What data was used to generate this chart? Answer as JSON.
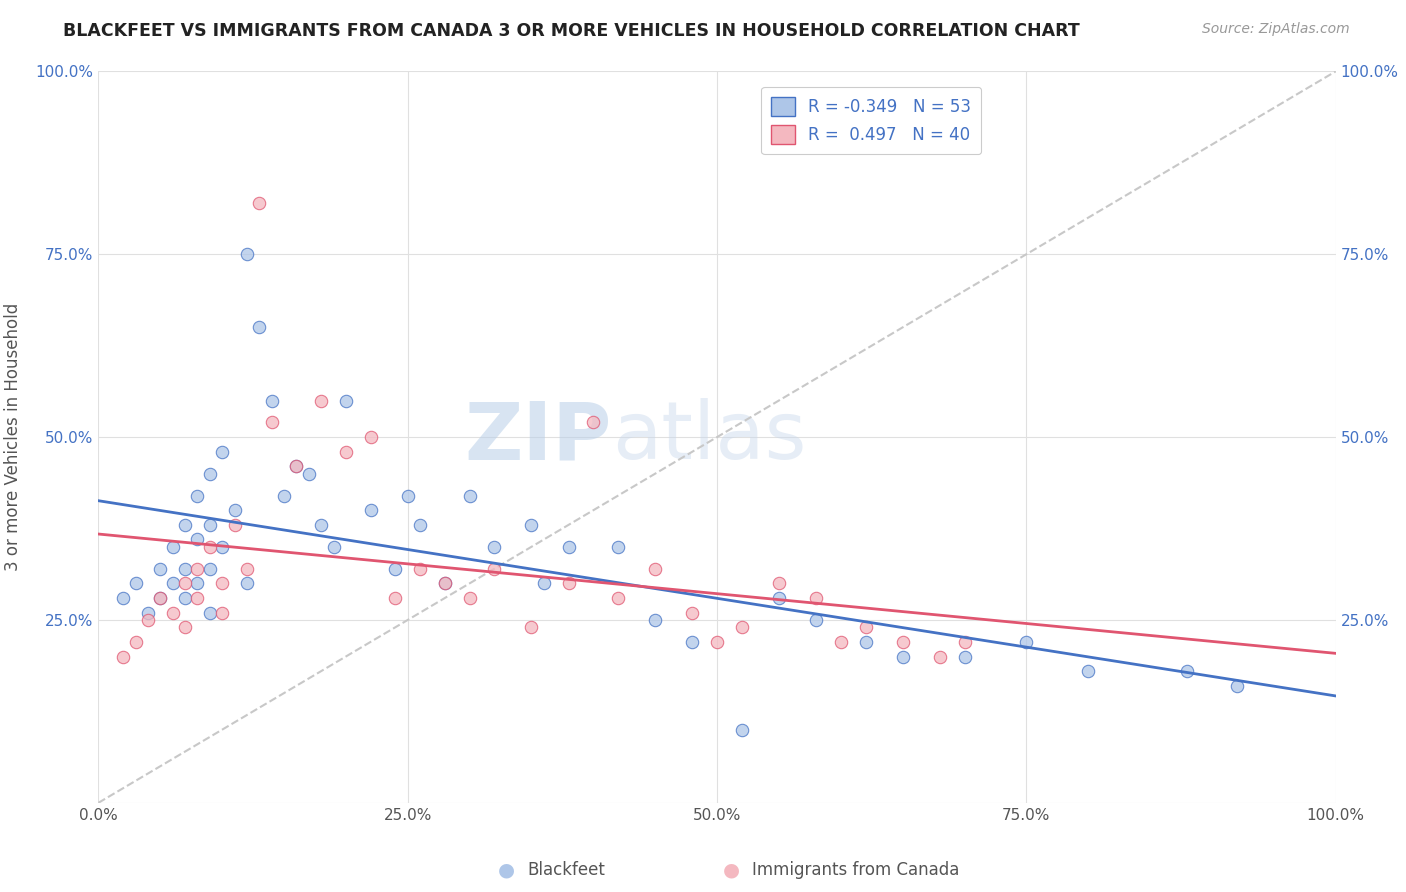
{
  "title": "BLACKFEET VS IMMIGRANTS FROM CANADA 3 OR MORE VEHICLES IN HOUSEHOLD CORRELATION CHART",
  "source_text": "Source: ZipAtlas.com",
  "ylabel": "3 or more Vehicles in Household",
  "watermark_zip": "ZIP",
  "watermark_atlas": "atlas",
  "legend_r1": "-0.349",
  "legend_n1": "53",
  "legend_r2": "0.497",
  "legend_n2": "40",
  "label1": "Blackfeet",
  "label2": "Immigrants from Canada",
  "color1": "#aec6e8",
  "color2": "#f4b8c0",
  "line_color1": "#4472c4",
  "line_color2": "#e05570",
  "diag_color": "#c8c8c8",
  "xlim": [
    0.0,
    1.0
  ],
  "ylim": [
    0.0,
    1.0
  ],
  "xticks": [
    0.0,
    0.25,
    0.5,
    0.75,
    1.0
  ],
  "yticks": [
    0.0,
    0.25,
    0.5,
    0.75,
    1.0
  ],
  "xticklabels": [
    "0.0%",
    "25.0%",
    "50.0%",
    "75.0%",
    "100.0%"
  ],
  "yticklabels": [
    "",
    "25.0%",
    "50.0%",
    "75.0%",
    "100.0%"
  ],
  "blackfeet_x": [
    0.02,
    0.03,
    0.04,
    0.05,
    0.05,
    0.06,
    0.06,
    0.07,
    0.07,
    0.07,
    0.08,
    0.08,
    0.08,
    0.09,
    0.09,
    0.09,
    0.09,
    0.1,
    0.1,
    0.11,
    0.12,
    0.12,
    0.13,
    0.14,
    0.15,
    0.16,
    0.17,
    0.18,
    0.19,
    0.2,
    0.22,
    0.24,
    0.25,
    0.26,
    0.28,
    0.3,
    0.32,
    0.35,
    0.36,
    0.38,
    0.42,
    0.45,
    0.48,
    0.52,
    0.55,
    0.58,
    0.62,
    0.65,
    0.7,
    0.75,
    0.8,
    0.88,
    0.92
  ],
  "blackfeet_y": [
    0.28,
    0.3,
    0.26,
    0.32,
    0.28,
    0.35,
    0.3,
    0.38,
    0.32,
    0.28,
    0.42,
    0.36,
    0.3,
    0.45,
    0.38,
    0.32,
    0.26,
    0.48,
    0.35,
    0.4,
    0.75,
    0.3,
    0.65,
    0.55,
    0.42,
    0.46,
    0.45,
    0.38,
    0.35,
    0.55,
    0.4,
    0.32,
    0.42,
    0.38,
    0.3,
    0.42,
    0.35,
    0.38,
    0.3,
    0.35,
    0.35,
    0.25,
    0.22,
    0.1,
    0.28,
    0.25,
    0.22,
    0.2,
    0.2,
    0.22,
    0.18,
    0.18,
    0.16
  ],
  "immigrants_x": [
    0.02,
    0.03,
    0.04,
    0.05,
    0.06,
    0.07,
    0.07,
    0.08,
    0.08,
    0.09,
    0.1,
    0.1,
    0.11,
    0.12,
    0.13,
    0.14,
    0.16,
    0.18,
    0.2,
    0.22,
    0.24,
    0.26,
    0.28,
    0.3,
    0.32,
    0.35,
    0.38,
    0.4,
    0.42,
    0.45,
    0.48,
    0.5,
    0.52,
    0.55,
    0.58,
    0.6,
    0.62,
    0.65,
    0.68,
    0.7
  ],
  "immigrants_y": [
    0.2,
    0.22,
    0.25,
    0.28,
    0.26,
    0.3,
    0.24,
    0.32,
    0.28,
    0.35,
    0.3,
    0.26,
    0.38,
    0.32,
    0.82,
    0.52,
    0.46,
    0.55,
    0.48,
    0.5,
    0.28,
    0.32,
    0.3,
    0.28,
    0.32,
    0.24,
    0.3,
    0.52,
    0.28,
    0.32,
    0.26,
    0.22,
    0.24,
    0.3,
    0.28,
    0.22,
    0.24,
    0.22,
    0.2,
    0.22
  ]
}
